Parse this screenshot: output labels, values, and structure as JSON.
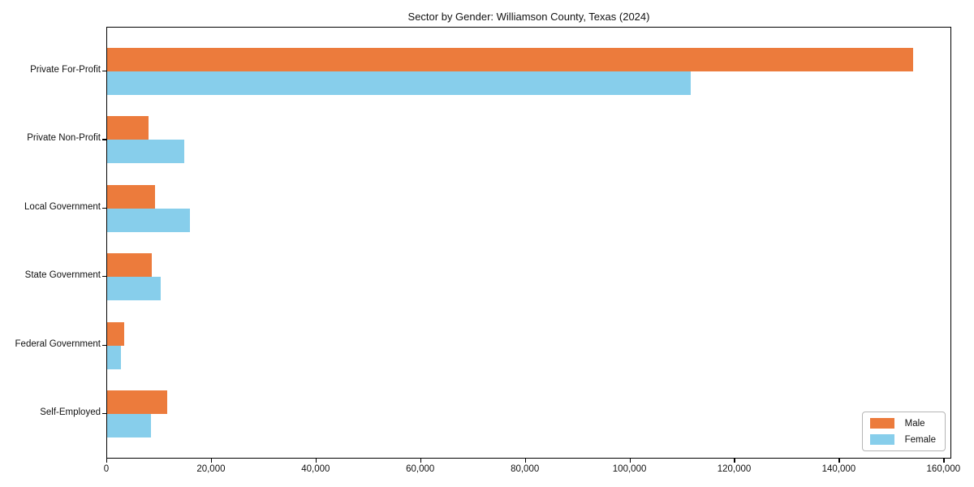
{
  "chart_data": {
    "type": "bar",
    "orientation": "horizontal",
    "title": "Sector by Gender: Williamson County, Texas (2024)",
    "categories": [
      "Private For-Profit",
      "Private Non-Profit",
      "Local Government",
      "State Government",
      "Federal Government",
      "Self-Employed"
    ],
    "series": [
      {
        "name": "Male",
        "color": "#EC7B3C",
        "values": [
          154000,
          7900,
          9200,
          8500,
          3200,
          11500
        ]
      },
      {
        "name": "Female",
        "color": "#87CEEB",
        "values": [
          111500,
          14800,
          15900,
          10200,
          2700,
          8400
        ]
      }
    ],
    "xlabel": "",
    "ylabel": "",
    "xlim": [
      0,
      161500
    ],
    "x_ticks": [
      0,
      20000,
      40000,
      60000,
      80000,
      100000,
      120000,
      140000,
      160000
    ],
    "x_tick_labels": [
      "0",
      "20,000",
      "40,000",
      "60,000",
      "80,000",
      "100,000",
      "120,000",
      "140,000",
      "160,000"
    ],
    "grid": false,
    "legend_position": "lower right"
  }
}
